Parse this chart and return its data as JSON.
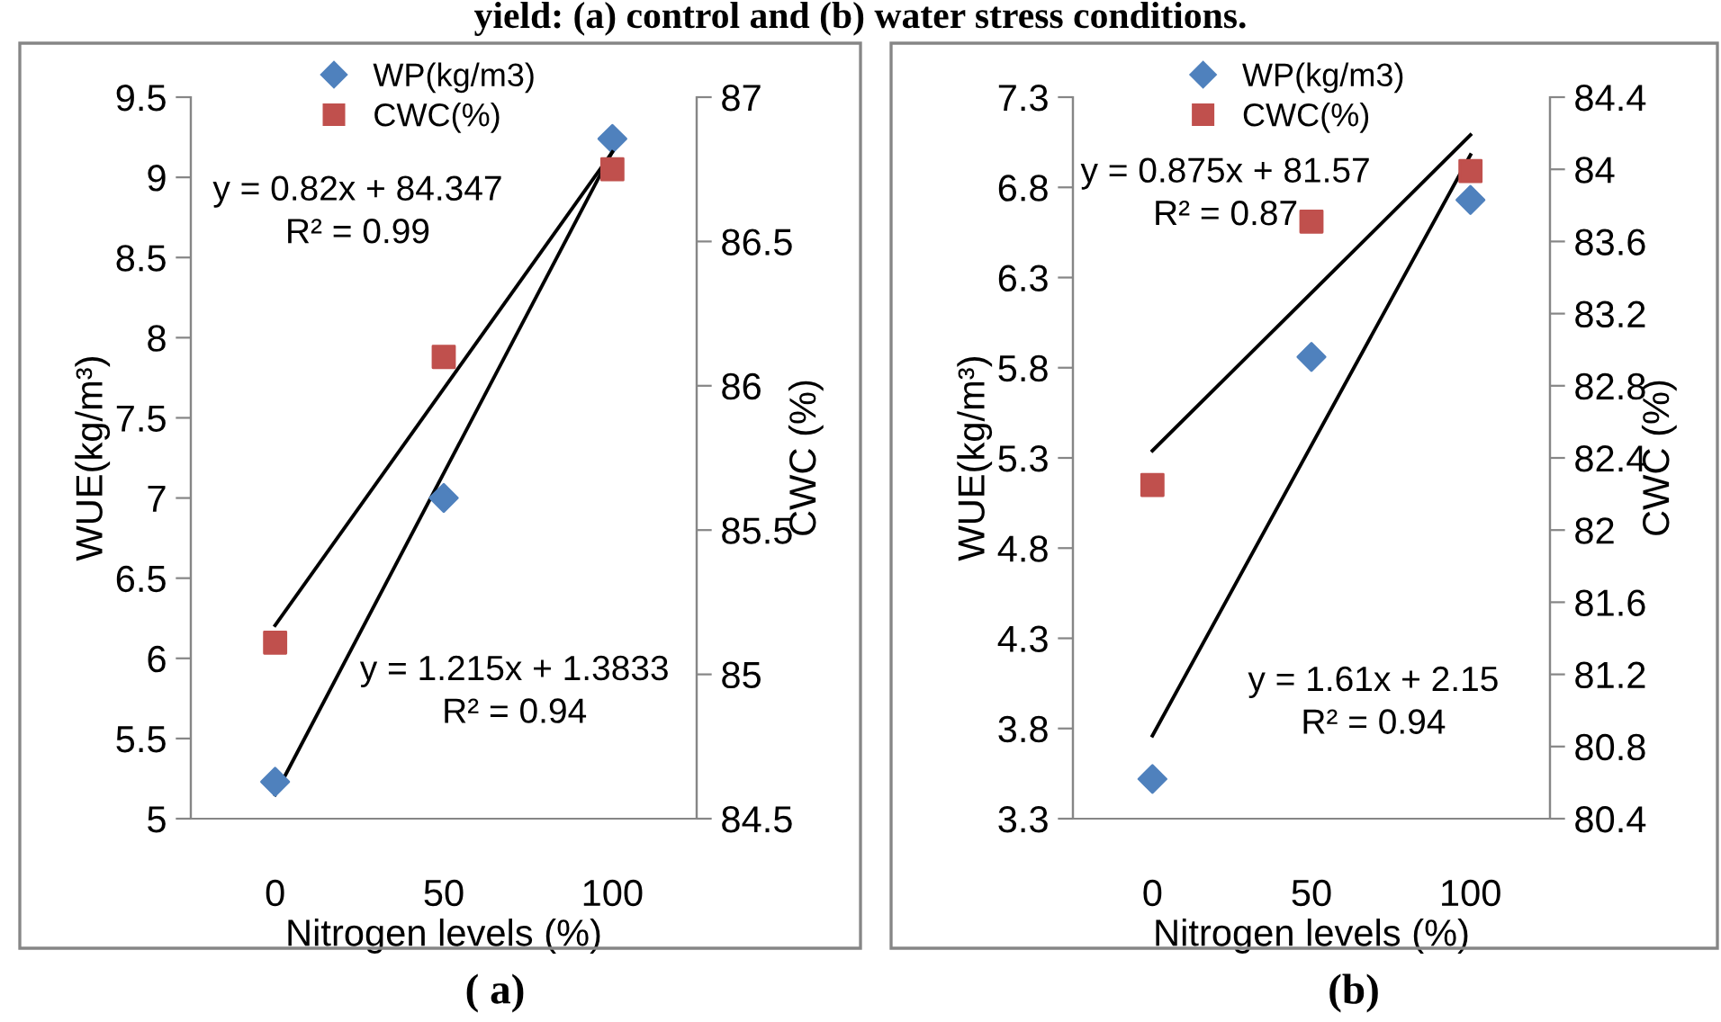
{
  "chart_data": [
    {
      "type": "scatter",
      "categories": [
        "0",
        "50",
        "100"
      ],
      "xlabel": "Nitrogen levels (%)",
      "ylabel": "WUE(kg/m³)",
      "y2label": "CWC (%)",
      "ylim": [
        5,
        9.5
      ],
      "yticks": [
        5,
        5.5,
        6,
        6.5,
        7,
        7.5,
        8,
        8.5,
        9,
        9.5
      ],
      "y2lim": [
        84.5,
        87
      ],
      "y2ticks": [
        84.5,
        85,
        85.5,
        86,
        86.5,
        87
      ],
      "series": [
        {
          "name": "WP(kg/m3)",
          "color": "#4f81bd",
          "marker": "diamond",
          "values": [
            5.23,
            7.0,
            9.24
          ]
        },
        {
          "name": "CWC(%)",
          "color": "#c0504d",
          "marker": "square",
          "axis": "y2",
          "values": [
            85.11,
            86.1,
            86.75
          ]
        },
        {
          "type": "line",
          "color": "#000000",
          "marker": "none",
          "axis": "y2",
          "x": [
            "0",
            "100"
          ],
          "values": [
            85.17,
            86.81
          ]
        },
        {
          "type": "line",
          "color": "#000000",
          "marker": "none",
          "x": [
            "0",
            "100"
          ],
          "values": [
            5.15,
            9.16
          ]
        }
      ],
      "annotations": [
        "y = 0.82x + 84.347\nR² = 0.99",
        "y = 1.215x + 1.3833\nR² = 0.94",
        "( a)",
        "yield: (a) control and (b) water stress conditions."
      ],
      "legend": "top",
      "grid": false
    },
    {
      "type": "scatter",
      "categories": [
        "0",
        "50",
        "100"
      ],
      "xlabel": "Nitrogen levels (%)",
      "ylabel": "WUE(kg/m³)",
      "y2label": "CWC (%)",
      "ylim": [
        3.3,
        7.3
      ],
      "yticks": [
        3.3,
        3.8,
        4.3,
        4.8,
        5.3,
        5.8,
        6.3,
        6.8,
        7.3
      ],
      "y2lim": [
        80.4,
        84.4
      ],
      "y2ticks": [
        80.4,
        80.8,
        81.2,
        81.6,
        82,
        82.4,
        82.8,
        83.2,
        83.6,
        84,
        84.4
      ],
      "series": [
        {
          "name": "WP(kg/m3)",
          "color": "#4f81bd",
          "marker": "diamond",
          "values": [
            3.52,
            5.86,
            6.73
          ]
        },
        {
          "name": "CWC(%)",
          "color": "#c0504d",
          "marker": "square",
          "axis": "y2",
          "values": [
            82.25,
            83.71,
            83.99
          ]
        },
        {
          "type": "line",
          "color": "#000000",
          "marker": "none",
          "axis": "y2",
          "x": [
            "0",
            "100"
          ],
          "values": [
            82.44,
            84.19
          ]
        },
        {
          "type": "line",
          "color": "#000000",
          "marker": "none",
          "x": [
            "0",
            "100"
          ],
          "values": [
            3.76,
            6.98
          ]
        }
      ],
      "annotations": [
        "y = 0.875x + 81.57\nR² = 0.87",
        "y = 1.61x + 2.15\nR² = 0.94",
        "(b)"
      ],
      "legend": "top",
      "grid": false
    }
  ]
}
